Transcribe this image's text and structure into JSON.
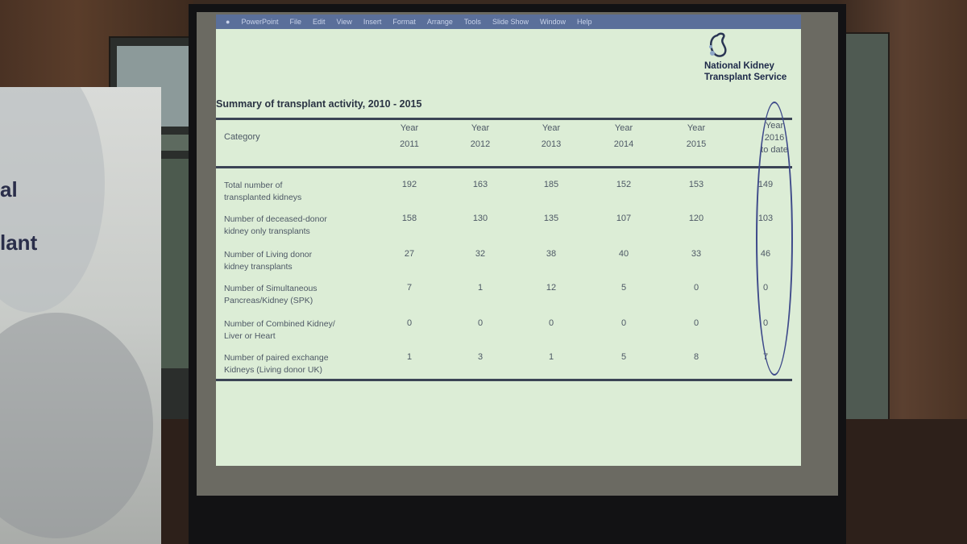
{
  "slide": {
    "menu": [
      "PowerPoint",
      "File",
      "Edit",
      "View",
      "Insert",
      "Format",
      "Arrange",
      "Tools",
      "Slide Show",
      "Window",
      "Help"
    ],
    "org_name": [
      "National Kidney",
      "Transplant Service"
    ],
    "title": "Summary of transplant activity, 2010 - 2015",
    "table": {
      "category_header": "Category",
      "columns": [
        [
          "Year",
          "2011"
        ],
        [
          "Year",
          "2012"
        ],
        [
          "Year",
          "2013"
        ],
        [
          "Year",
          "2014"
        ],
        [
          "Year",
          "2015"
        ],
        [
          "Year",
          "2016",
          "to date"
        ]
      ],
      "rows": [
        {
          "label": [
            "Total number of",
            "transplanted kidneys"
          ],
          "values": [
            "192",
            "163",
            "185",
            "152",
            "153",
            "149"
          ]
        },
        {
          "label": [
            "Number of deceased-donor",
            "kidney only transplants"
          ],
          "values": [
            "158",
            "130",
            "135",
            "107",
            "120",
            "103"
          ]
        },
        {
          "label": [
            "Number of Living  donor",
            "kidney transplants"
          ],
          "values": [
            "27",
            "32",
            "38",
            "40",
            "33",
            "46"
          ]
        },
        {
          "label": [
            "Number of Simultaneous",
            "Pancreas/Kidney (SPK)"
          ],
          "values": [
            "7",
            "1",
            "12",
            "5",
            "0",
            "0"
          ]
        },
        {
          "label": [
            "Number of Combined Kidney/",
            "Liver or Heart"
          ],
          "values": [
            "0",
            "0",
            "0",
            "0",
            "0",
            "0"
          ]
        },
        {
          "label": [
            "Number of paired exchange",
            "Kidneys  (Living donor UK)"
          ],
          "values": [
            "1",
            "3",
            "1",
            "5",
            "8",
            "7"
          ]
        }
      ]
    }
  },
  "banner": {
    "text_fragments": [
      "al",
      "lant"
    ]
  },
  "colors": {
    "slide_background": "#dcedd6",
    "menubar": "#5a6f9a",
    "title_text": "#2a3343",
    "table_text": "#4d5865",
    "highlight_oval": "#3e4a8a"
  }
}
